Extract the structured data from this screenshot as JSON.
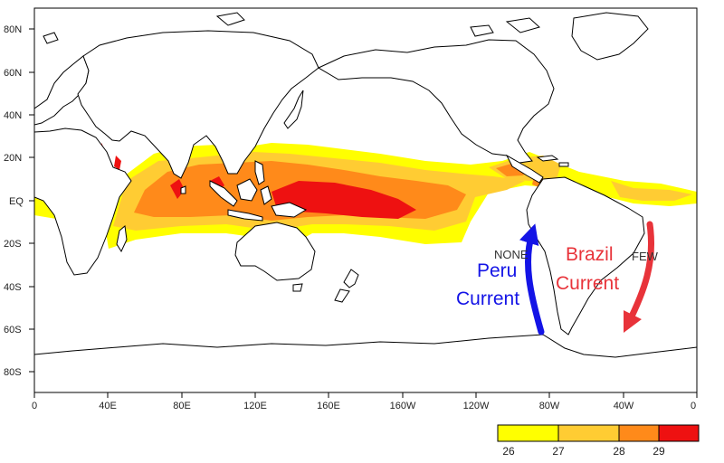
{
  "map": {
    "y_ticks": [
      "80N",
      "60N",
      "40N",
      "20N",
      "EQ",
      "20S",
      "40S",
      "60S",
      "80S"
    ],
    "x_ticks": [
      "0",
      "40E",
      "80E",
      "120E",
      "160E",
      "160W",
      "120W",
      "80W",
      "40W",
      "0"
    ],
    "annotations": {
      "peru_line1": "Peru",
      "peru_line2": "Current",
      "brazil_line1": "Brazil",
      "brazil_line2": "Current",
      "none_label": "NONE",
      "few_label": "FEW"
    },
    "legend": {
      "labels": [
        "26",
        "27",
        "28",
        "29"
      ],
      "colors": [
        "#ffff00",
        "#ffcc33",
        "#ff8a1a",
        "#ee1111"
      ]
    },
    "colors": {
      "sst_26": "#ffff00",
      "sst_27": "#ffcc33",
      "sst_28": "#ff8a1a",
      "sst_29": "#ee1111",
      "peru_arrow": "#1414e6",
      "brazil_arrow": "#e8333a"
    }
  }
}
